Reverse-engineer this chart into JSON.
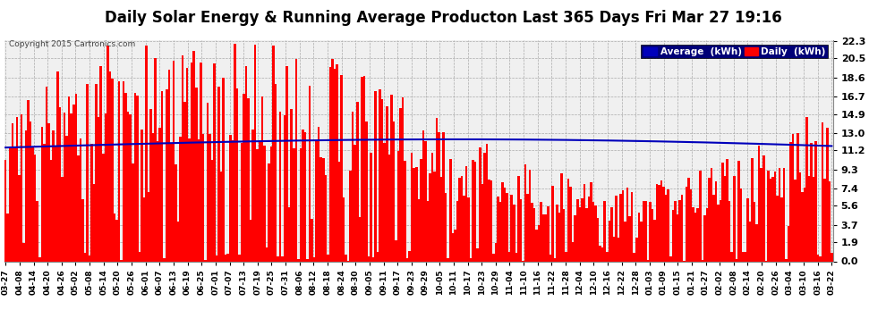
{
  "title": "Daily Solar Energy & Running Average Producton Last 365 Days Fri Mar 27 19:16",
  "copyright": "Copyright 2015 Cartronics.com",
  "ylabel_ticks": [
    0.0,
    1.9,
    3.7,
    5.6,
    7.4,
    9.3,
    11.2,
    13.0,
    14.9,
    16.7,
    18.6,
    20.5,
    22.3
  ],
  "ymax": 22.3,
  "ymin": 0.0,
  "bar_color": "#ff0000",
  "avg_color": "#0000bb",
  "background_color": "#ffffff",
  "plot_bg_color": "#f0f0f0",
  "grid_color": "#aaaaaa",
  "legend_avg_bg": "#0000bb",
  "legend_daily_bg": "#ff0000",
  "title_fontsize": 12,
  "avg_label": "Average  (kWh)",
  "daily_label": "Daily  (kWh)",
  "x_labels": [
    "03-27",
    "04-08",
    "04-14",
    "04-20",
    "04-26",
    "05-02",
    "05-08",
    "05-14",
    "05-20",
    "05-26",
    "06-01",
    "06-07",
    "06-13",
    "06-19",
    "06-25",
    "07-01",
    "07-07",
    "07-13",
    "07-19",
    "07-25",
    "07-31",
    "08-06",
    "08-12",
    "08-18",
    "08-24",
    "08-30",
    "09-05",
    "09-11",
    "09-17",
    "09-23",
    "09-29",
    "10-05",
    "10-11",
    "10-17",
    "10-23",
    "10-29",
    "11-04",
    "11-10",
    "11-16",
    "11-22",
    "11-28",
    "12-04",
    "12-10",
    "12-16",
    "12-22",
    "12-28",
    "01-03",
    "01-09",
    "01-15",
    "01-21",
    "01-27",
    "02-02",
    "02-08",
    "02-14",
    "02-20",
    "02-26",
    "03-04",
    "03-10",
    "03-16",
    "03-22"
  ]
}
